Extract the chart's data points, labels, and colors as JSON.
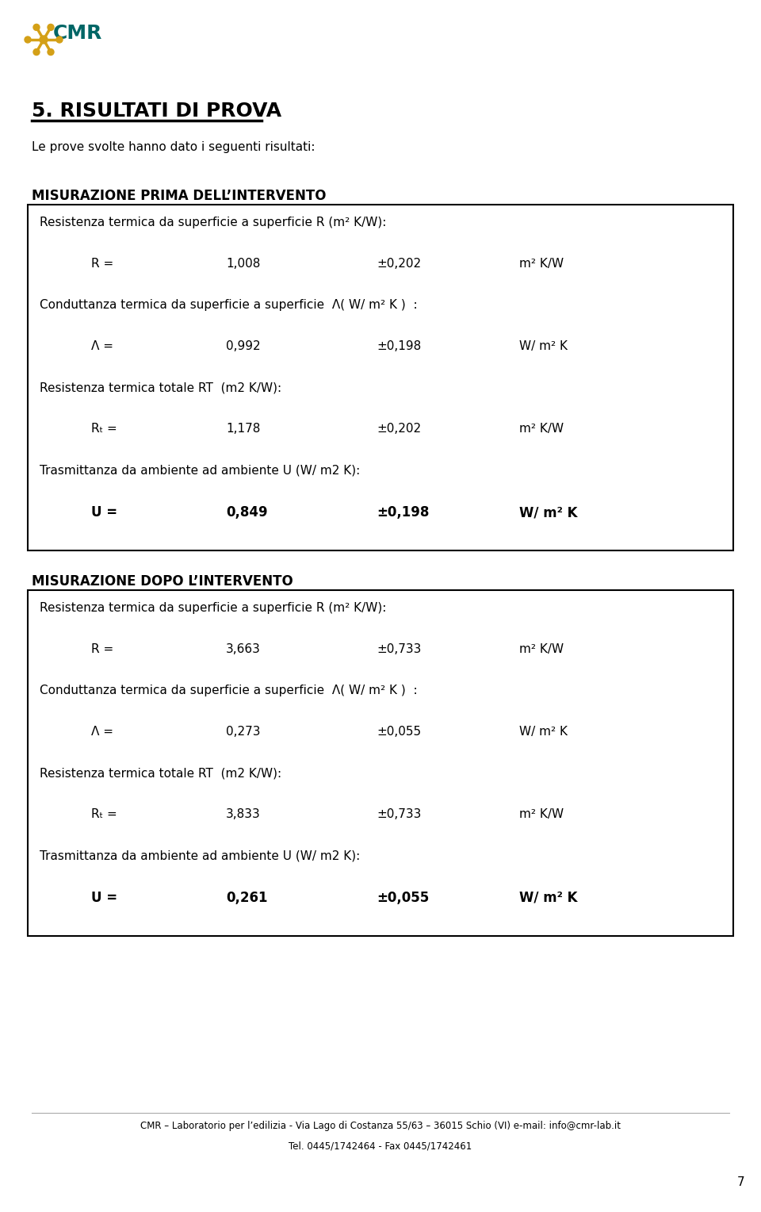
{
  "bg_color": "#ffffff",
  "title_section": "5. RISULTATI DI PROVA",
  "intro_text": "Le prove svolte hanno dato i seguenti risultati:",
  "section1_header": "MISURAZIONE PRIMA DELL’INTERVENTO",
  "section2_header": "MISURAZIONE DOPO L’INTERVENTO",
  "footer_line1": "CMR – Laboratorio per l’edilizia - Via Lago di Costanza 55/63 – 36015 Schio (VI) e-mail: info@cmr-lab.it",
  "footer_line2": "Tel. 0445/1742464 - Fax 0445/1742461",
  "page_number": "7",
  "box1": {
    "lines": [
      {
        "type": "label",
        "text": "Resistenza termica da superficie a superficie R (m² K/W):"
      },
      {
        "type": "data",
        "label": "R =",
        "value": "1,008",
        "uncertainty": "±0,202",
        "unit": "m² K/W"
      },
      {
        "type": "label",
        "text": "Conduttanza termica da superficie a superficie  Λ( W/ m² K )  :"
      },
      {
        "type": "data",
        "label": "Λ =",
        "value": "0,992",
        "uncertainty": "±0,198",
        "unit": "W/ m² K"
      },
      {
        "type": "label",
        "text": "Resistenza termica totale RT  (m2 K/W):"
      },
      {
        "type": "data_sub",
        "label": "Rₜ =",
        "value": "1,178",
        "uncertainty": "±0,202",
        "unit": "m² K/W"
      },
      {
        "type": "label",
        "text": "Trasmittanza da ambiente ad ambiente U (W/ m2 K):"
      },
      {
        "type": "data_bold",
        "label": "U =",
        "value": "0,849",
        "uncertainty": "±0,198",
        "unit": "W/ m² K"
      }
    ]
  },
  "box2": {
    "lines": [
      {
        "type": "label",
        "text": "Resistenza termica da superficie a superficie R (m² K/W):"
      },
      {
        "type": "data",
        "label": "R =",
        "value": "3,663",
        "uncertainty": "±0,733",
        "unit": "m² K/W"
      },
      {
        "type": "label",
        "text": "Conduttanza termica da superficie a superficie  Λ( W/ m² K )  :"
      },
      {
        "type": "data",
        "label": "Λ =",
        "value": "0,273",
        "uncertainty": "±0,055",
        "unit": "W/ m² K"
      },
      {
        "type": "label",
        "text": "Resistenza termica totale RT  (m2 K/W):"
      },
      {
        "type": "data_sub",
        "label": "Rₜ =",
        "value": "3,833",
        "uncertainty": "±0,733",
        "unit": "m² K/W"
      },
      {
        "type": "label",
        "text": "Trasmittanza da ambiente ad ambiente U (W/ m2 K):"
      },
      {
        "type": "data_bold",
        "label": "U =",
        "value": "0,261",
        "uncertainty": "±0,055",
        "unit": "W/ m² K"
      }
    ]
  }
}
